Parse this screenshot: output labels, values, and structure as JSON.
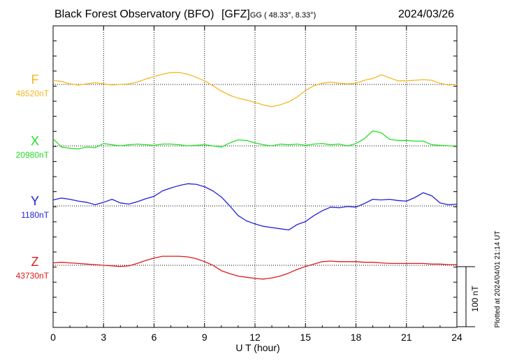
{
  "header": {
    "title": "Black Forest Observatory (BFO)",
    "source": "[GFZ]",
    "coords": "GG ( 48.33°,   8.33°)",
    "date": "2024/03/26"
  },
  "plotted_note": "Plotted at 2024/04/01 21:14 UT",
  "chart_data": {
    "type": "line",
    "xlabel": "U T (hour)",
    "xlim": [
      0,
      24
    ],
    "xticks": [
      0,
      3,
      6,
      9,
      12,
      15,
      18,
      21,
      24
    ],
    "grid": true,
    "scale_bar": {
      "label": "100 nT",
      "value": 100
    },
    "series": [
      {
        "name": "F",
        "baseline_label": "48520nT",
        "baseline": 48520,
        "color": "#f5b623",
        "x": [
          0,
          0.5,
          1,
          1.5,
          2,
          2.5,
          3,
          3.5,
          4,
          4.5,
          5,
          5.5,
          6,
          6.5,
          7,
          7.5,
          8,
          8.5,
          9,
          9.5,
          10,
          10.5,
          11,
          11.5,
          12,
          12.5,
          13,
          13.5,
          14,
          14.5,
          15,
          15.5,
          16,
          16.5,
          17,
          17.5,
          18,
          18.5,
          19,
          19.5,
          20,
          20.5,
          21,
          21.5,
          22,
          22.5,
          23,
          23.5,
          24
        ],
        "values": [
          48527,
          48525,
          48521,
          48519,
          48521,
          48523,
          48521,
          48519,
          48520,
          48521,
          48524,
          48529,
          48533,
          48537,
          48540,
          48540,
          48537,
          48532,
          48526,
          48518,
          48509,
          48502,
          48497,
          48494,
          48490,
          48486,
          48483,
          48486,
          48491,
          48499,
          48510,
          48518,
          48522,
          48524,
          48522,
          48521,
          48522,
          48527,
          48530,
          48536,
          48531,
          48526,
          48526,
          48527,
          48528,
          48527,
          48522,
          48519,
          48520
        ]
      },
      {
        "name": "X",
        "baseline_label": "20980nT",
        "baseline": 20980,
        "color": "#22e022",
        "x": [
          0,
          0.5,
          1,
          1.5,
          2,
          2.5,
          3,
          3.5,
          4,
          4.5,
          5,
          5.5,
          6,
          6.5,
          7,
          7.5,
          8,
          8.5,
          9,
          9.5,
          10,
          10.5,
          11,
          11.5,
          12,
          12.5,
          13,
          13.5,
          14,
          14.5,
          15,
          15.5,
          16,
          16.5,
          17,
          17.5,
          18,
          18.5,
          19,
          19.5,
          20,
          20.5,
          21,
          21.5,
          22,
          22.5,
          23,
          23.5,
          24
        ],
        "values": [
          20992,
          20978,
          20976,
          20975,
          20978,
          20977,
          20984,
          20982,
          20980,
          20982,
          20983,
          20982,
          20981,
          20983,
          20983,
          20982,
          20980,
          20981,
          20982,
          20980,
          20978,
          20985,
          20990,
          20989,
          20985,
          20982,
          20980,
          20983,
          20982,
          20983,
          20981,
          20983,
          20984,
          20982,
          20983,
          20980,
          20984,
          20992,
          21005,
          21002,
          20991,
          20989,
          20989,
          20988,
          20988,
          20982,
          20981,
          20980,
          20980
        ]
      },
      {
        "name": "Y",
        "baseline_label": "1180nT",
        "baseline": 1180,
        "color": "#2020d8",
        "x": [
          0,
          0.5,
          1,
          1.5,
          2,
          2.5,
          3,
          3.5,
          4,
          4.5,
          5,
          5.5,
          6,
          6.5,
          7,
          7.5,
          8,
          8.5,
          9,
          9.5,
          10,
          10.5,
          11,
          11.5,
          12,
          12.5,
          13,
          13.5,
          14,
          14.5,
          15,
          15.5,
          16,
          16.5,
          17,
          17.5,
          18,
          18.5,
          19,
          19.5,
          20,
          20.5,
          21,
          21.5,
          22,
          22.5,
          23,
          23.5,
          24
        ],
        "values": [
          1190,
          1193,
          1191,
          1188,
          1186,
          1182,
          1186,
          1191,
          1185,
          1183,
          1187,
          1192,
          1196,
          1205,
          1210,
          1214,
          1217,
          1216,
          1212,
          1205,
          1195,
          1180,
          1164,
          1155,
          1150,
          1146,
          1144,
          1142,
          1140,
          1149,
          1154,
          1164,
          1172,
          1178,
          1177,
          1179,
          1178,
          1184,
          1191,
          1190,
          1191,
          1189,
          1188,
          1194,
          1202,
          1197,
          1185,
          1182,
          1183
        ]
      },
      {
        "name": "Z",
        "baseline_label": "43730nT",
        "baseline": 43730,
        "color": "#e01a1a",
        "x": [
          0,
          0.5,
          1,
          1.5,
          2,
          2.5,
          3,
          3.5,
          4,
          4.5,
          5,
          5.5,
          6,
          6.5,
          7,
          7.5,
          8,
          8.5,
          9,
          9.5,
          10,
          10.5,
          11,
          11.5,
          12,
          12.5,
          13,
          13.5,
          14,
          14.5,
          15,
          15.5,
          16,
          16.5,
          17,
          17.5,
          18,
          18.5,
          19,
          19.5,
          20,
          20.5,
          21,
          21.5,
          22,
          22.5,
          23,
          23.5,
          24
        ],
        "values": [
          43734,
          43735,
          43734,
          43733,
          43732,
          43731,
          43730,
          43729,
          43728,
          43729,
          43733,
          43738,
          43742,
          43745,
          43745,
          43745,
          43744,
          43741,
          43736,
          43730,
          43721,
          43716,
          43712,
          43710,
          43708,
          43707,
          43709,
          43712,
          43717,
          43723,
          43728,
          43732,
          43736,
          43737,
          43736,
          43736,
          43736,
          43735,
          43735,
          43734,
          43733,
          43733,
          43733,
          43733,
          43733,
          43732,
          43732,
          43731,
          43731
        ]
      }
    ]
  }
}
